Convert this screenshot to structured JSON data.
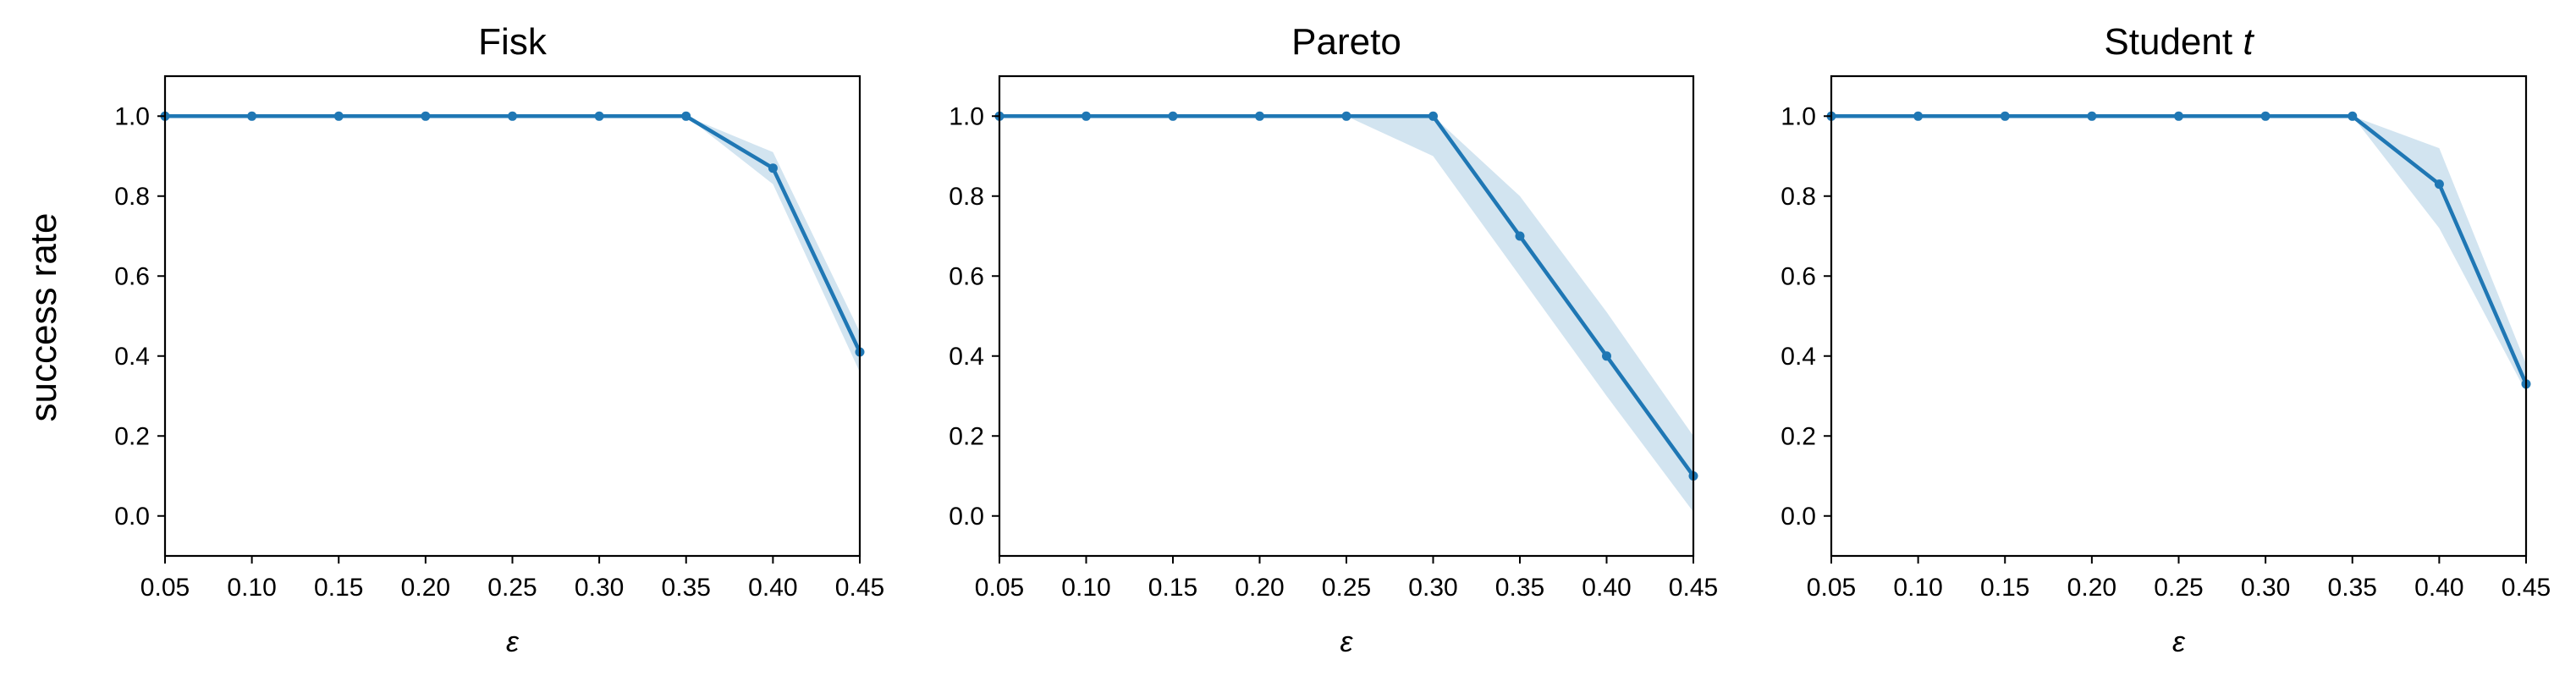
{
  "figure": {
    "ylabel": "success rate",
    "xlabel": "ε"
  },
  "chart_data": [
    {
      "type": "line",
      "title": "Fisk",
      "title_main": "Fisk",
      "title_italic": "",
      "xlabel": "ε",
      "ylabel": "success rate",
      "xlim": [
        0.05,
        0.45
      ],
      "ylim": [
        -0.1,
        1.1
      ],
      "xticks": [
        "0.05",
        "0.10",
        "0.15",
        "0.20",
        "0.25",
        "0.30",
        "0.35",
        "0.40",
        "0.45"
      ],
      "yticks": [
        "0.0",
        "0.2",
        "0.4",
        "0.6",
        "0.8",
        "1.0"
      ],
      "grid": false,
      "x": [
        0.05,
        0.1,
        0.15,
        0.2,
        0.25,
        0.3,
        0.35,
        0.4,
        0.45
      ],
      "series": [
        {
          "values": [
            1.0,
            1.0,
            1.0,
            1.0,
            1.0,
            1.0,
            1.0,
            0.87,
            0.41
          ],
          "lower": [
            1.0,
            1.0,
            1.0,
            1.0,
            1.0,
            1.0,
            1.0,
            0.83,
            0.36
          ],
          "upper": [
            1.0,
            1.0,
            1.0,
            1.0,
            1.0,
            1.0,
            1.0,
            0.91,
            0.46
          ]
        }
      ]
    },
    {
      "type": "line",
      "title": "Pareto",
      "title_main": "Pareto",
      "title_italic": "",
      "xlabel": "ε",
      "ylabel": "",
      "xlim": [
        0.05,
        0.45
      ],
      "ylim": [
        -0.1,
        1.1
      ],
      "xticks": [
        "0.05",
        "0.10",
        "0.15",
        "0.20",
        "0.25",
        "0.30",
        "0.35",
        "0.40",
        "0.45"
      ],
      "yticks": [
        "0.0",
        "0.2",
        "0.4",
        "0.6",
        "0.8",
        "1.0"
      ],
      "grid": false,
      "x": [
        0.05,
        0.1,
        0.15,
        0.2,
        0.25,
        0.3,
        0.35,
        0.4,
        0.45
      ],
      "series": [
        {
          "values": [
            1.0,
            1.0,
            1.0,
            1.0,
            1.0,
            1.0,
            0.7,
            0.4,
            0.1
          ],
          "lower": [
            1.0,
            1.0,
            1.0,
            1.0,
            1.0,
            0.9,
            0.6,
            0.3,
            0.01
          ],
          "upper": [
            1.0,
            1.0,
            1.0,
            1.0,
            1.0,
            1.0,
            0.8,
            0.51,
            0.2
          ]
        }
      ]
    },
    {
      "type": "line",
      "title": "Student t",
      "title_main": "Student ",
      "title_italic": "t",
      "xlabel": "ε",
      "ylabel": "",
      "xlim": [
        0.05,
        0.45
      ],
      "ylim": [
        -0.1,
        1.1
      ],
      "xticks": [
        "0.05",
        "0.10",
        "0.15",
        "0.20",
        "0.25",
        "0.30",
        "0.35",
        "0.40",
        "0.45"
      ],
      "yticks": [
        "0.0",
        "0.2",
        "0.4",
        "0.6",
        "0.8",
        "1.0"
      ],
      "grid": false,
      "x": [
        0.05,
        0.1,
        0.15,
        0.2,
        0.25,
        0.3,
        0.35,
        0.4,
        0.45
      ],
      "series": [
        {
          "values": [
            1.0,
            1.0,
            1.0,
            1.0,
            1.0,
            1.0,
            1.0,
            0.83,
            0.33
          ],
          "lower": [
            1.0,
            1.0,
            1.0,
            1.0,
            1.0,
            1.0,
            1.0,
            0.72,
            0.31
          ],
          "upper": [
            1.0,
            1.0,
            1.0,
            1.0,
            1.0,
            1.0,
            1.0,
            0.92,
            0.38
          ]
        }
      ]
    }
  ],
  "colors": {
    "line": "#1f77b4",
    "band": "#1f77b4",
    "axes": "#000000"
  }
}
